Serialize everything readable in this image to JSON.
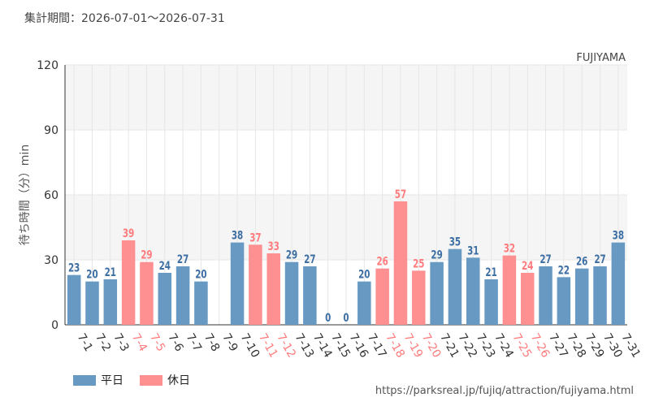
{
  "header": {
    "period": "集計期間：2026-07-01〜2026-07-31"
  },
  "legend": {
    "weekday": "平日",
    "holiday": "休日"
  },
  "source": "https://parksreal.jp/fujiq/attraction/fujiyama.html",
  "colors": {
    "weekday": "#6799c3",
    "holiday": "#ff9092",
    "weekday_text": "#3d6fa3",
    "holiday_text": "#ff7b7d",
    "band": "#f5f5f5",
    "grid": "#e6e6e6"
  },
  "chart_data": {
    "type": "bar",
    "title": "FUJIYAMA",
    "ylabel": "待ち時間（分）min",
    "ylim": [
      0,
      120
    ],
    "yticks": [
      0,
      30,
      60,
      90,
      120
    ],
    "categories": [
      "7-1",
      "7-2",
      "7-3",
      "7-4",
      "7-5",
      "7-6",
      "7-7",
      "7-8",
      "7-9",
      "7-10",
      "7-11",
      "7-12",
      "7-13",
      "7-14",
      "7-15",
      "7-16",
      "7-17",
      "7-18",
      "7-19",
      "7-20",
      "7-21",
      "7-22",
      "7-23",
      "7-24",
      "7-25",
      "7-26",
      "7-27",
      "7-28",
      "7-29",
      "7-30",
      "7-31"
    ],
    "values": [
      23,
      20,
      21,
      39,
      29,
      24,
      27,
      20,
      null,
      38,
      37,
      33,
      29,
      27,
      0,
      0,
      20,
      26,
      57,
      25,
      29,
      35,
      31,
      21,
      32,
      24,
      27,
      22,
      26,
      27,
      38
    ],
    "day_type": [
      "weekday",
      "weekday",
      "weekday",
      "holiday",
      "holiday",
      "weekday",
      "weekday",
      "weekday",
      "weekday",
      "weekday",
      "holiday",
      "holiday",
      "weekday",
      "weekday",
      "weekday",
      "weekday",
      "weekday",
      "holiday",
      "holiday",
      "holiday",
      "weekday",
      "weekday",
      "weekday",
      "weekday",
      "holiday",
      "holiday",
      "weekday",
      "weekday",
      "weekday",
      "weekday",
      "weekday"
    ]
  }
}
